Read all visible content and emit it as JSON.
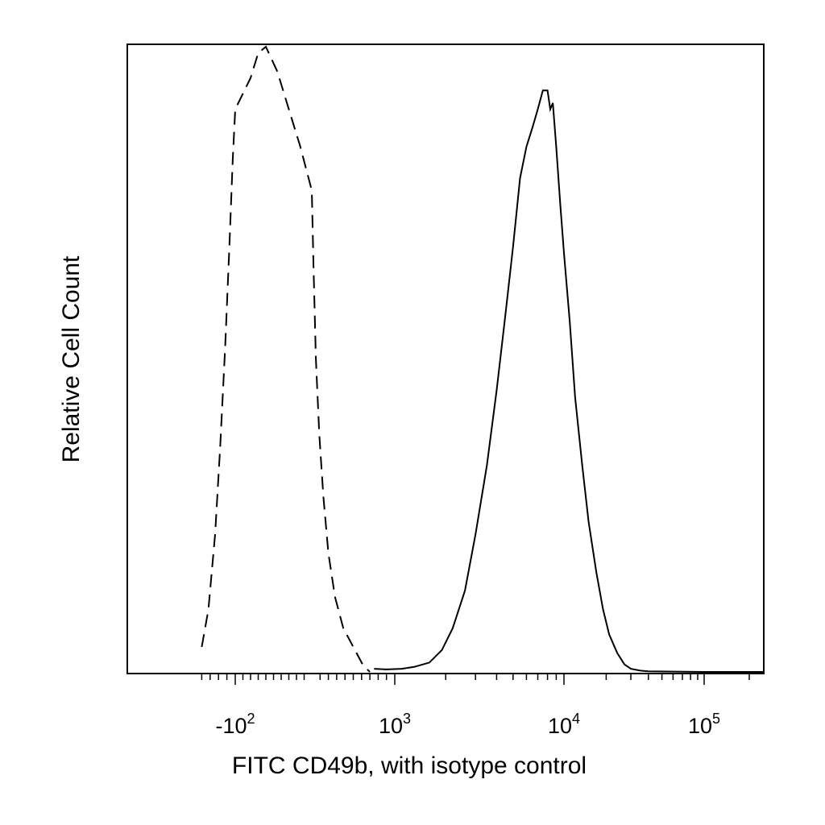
{
  "chart_data": {
    "type": "area",
    "xlabel": "FITC CD49b, with isotype control",
    "ylabel": "Relative Cell Count",
    "x_scale": "biexponential",
    "xlim": [
      -600,
      250000
    ],
    "ylim": [
      0,
      1
    ],
    "grid": false,
    "legend": "none",
    "x_tick_labels": [
      {
        "value": -100,
        "base": "-10",
        "exp": "2"
      },
      {
        "value": 1000,
        "base": "10",
        "exp": "3"
      },
      {
        "value": 10000,
        "base": "10",
        "exp": "4"
      },
      {
        "value": 100000,
        "base": "10",
        "exp": "5"
      }
    ],
    "series": [
      {
        "line_style": "dashed",
        "color": "#000000",
        "x": [
          -500,
          -420,
          -340,
          -280,
          -220,
          -170,
          -130,
          -100,
          -80,
          -70,
          -60,
          -45,
          -30,
          -15,
          0,
          20,
          50,
          90,
          140,
          200,
          280,
          380,
          500,
          620,
          700
        ],
        "y": [
          0.04,
          0.1,
          0.22,
          0.36,
          0.52,
          0.68,
          0.82,
          0.9,
          0.95,
          0.99,
          1.0,
          0.96,
          0.9,
          0.84,
          0.77,
          0.65,
          0.5,
          0.38,
          0.28,
          0.19,
          0.12,
          0.07,
          0.04,
          0.01,
          0.0
        ]
      },
      {
        "line_style": "solid",
        "color": "#000000",
        "x": [
          750,
          900,
          1100,
          1300,
          1600,
          1900,
          2200,
          2600,
          3000,
          3500,
          4000,
          4500,
          5000,
          5500,
          6000,
          6500,
          7000,
          7500,
          8000,
          8300,
          8600,
          9000,
          9500,
          10000,
          11000,
          12000,
          13500,
          15000,
          17000,
          19000,
          21000,
          24000,
          27000,
          30000,
          35000,
          40000,
          100000,
          250000
        ],
        "y": [
          0.005,
          0.004,
          0.005,
          0.008,
          0.015,
          0.035,
          0.07,
          0.13,
          0.22,
          0.33,
          0.45,
          0.57,
          0.68,
          0.79,
          0.84,
          0.87,
          0.9,
          0.93,
          0.93,
          0.9,
          0.91,
          0.84,
          0.75,
          0.67,
          0.56,
          0.44,
          0.33,
          0.24,
          0.16,
          0.1,
          0.06,
          0.03,
          0.012,
          0.005,
          0.002,
          0.001,
          0.0,
          0.0
        ]
      }
    ]
  }
}
